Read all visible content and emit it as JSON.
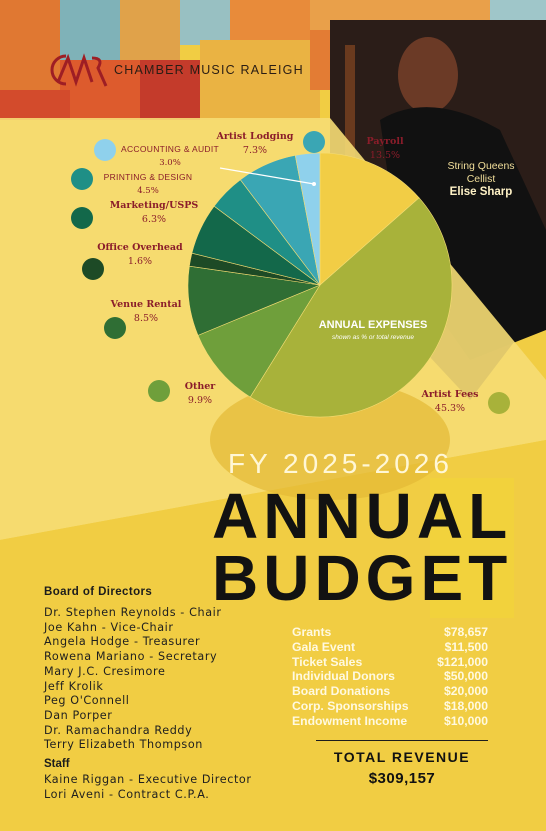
{
  "brand": {
    "name": "CHAMBER MUSIC RALEIGH"
  },
  "performer": {
    "line1": "String Queens",
    "line2": "Cellist",
    "name": "Elise Sharp"
  },
  "colors": {
    "background": "#f2cf45",
    "label_text": "#8b1d2a",
    "revenue_text": "#fff9e0"
  },
  "chart_data": {
    "type": "pie",
    "center_label": "ANNUAL EXPENSES",
    "center_sublabel": "shown as % or total revenue",
    "slices": [
      {
        "name": "Payroll",
        "label": "Payroll",
        "value_text": "13.5%",
        "value": 13.5,
        "color": "#f2cd45"
      },
      {
        "name": "Artist Fees",
        "label": "Artist Fees",
        "value_text": "45.3%",
        "value": 45.3,
        "color": "#a8b23a"
      },
      {
        "name": "Other",
        "label": "Other",
        "value_text": "9.9%",
        "value": 9.9,
        "color": "#6f9f3b"
      },
      {
        "name": "Venue Rental",
        "label": "Venue Rental",
        "value_text": "8.5%",
        "value": 8.5,
        "color": "#2f6e34"
      },
      {
        "name": "Office Overhead",
        "label": "Office Overhead",
        "value_text": "1.6%",
        "value": 1.6,
        "color": "#1d4a26"
      },
      {
        "name": "Marketing/USPS",
        "label": "Marketing/USPS",
        "value_text": "6.3%",
        "value": 6.3,
        "color": "#13684a"
      },
      {
        "name": "Printing & Design",
        "label": "PRINTING & DESIGN",
        "value_text": "4.5%",
        "value": 4.5,
        "color": "#1f8f86"
      },
      {
        "name": "Artist Lodging",
        "label": "Artist Lodging",
        "value_text": "7.3%",
        "value": 7.3,
        "color": "#3aa6b4"
      },
      {
        "name": "Accounting & Audit",
        "label": "ACCOUNTING & AUDIT",
        "value_text": "3.0%",
        "value": 3.0,
        "color": "#8fd1ec"
      }
    ]
  },
  "title": {
    "fy": "FY 2025-2026",
    "line1": "ANNUAL",
    "line2": "BUDGET"
  },
  "board": {
    "heading": "Board of Directors",
    "members": [
      "Dr. Stephen Reynolds - Chair",
      "Joe Kahn - Vice-Chair",
      "Angela Hodge - Treasurer",
      "Rowena Mariano - Secretary",
      "Mary J.C. Cresimore",
      "Jeff Krolik",
      "Peg O'Connell",
      "Dan Porper",
      "Dr. Ramachandra Reddy",
      "Terry Elizabeth Thompson"
    ]
  },
  "staff": {
    "heading": "Staff",
    "members": [
      "Kaine Riggan - Executive Director",
      "Lori Aveni - Contract C.P.A."
    ]
  },
  "revenue": {
    "items": [
      {
        "label": "Grants",
        "amount": "$78,657"
      },
      {
        "label": "Gala Event",
        "amount": "$11,500"
      },
      {
        "label": "Ticket Sales",
        "amount": "$121,000"
      },
      {
        "label": "Individual Donors",
        "amount": "$50,000"
      },
      {
        "label": "Board Donations",
        "amount": "$20,000"
      },
      {
        "label": "Corp. Sponsorships",
        "amount": "$18,000"
      },
      {
        "label": "Endowment Income",
        "amount": "$10,000"
      }
    ],
    "total_label": "TOTAL REVENUE",
    "total_value": "$309,157"
  }
}
